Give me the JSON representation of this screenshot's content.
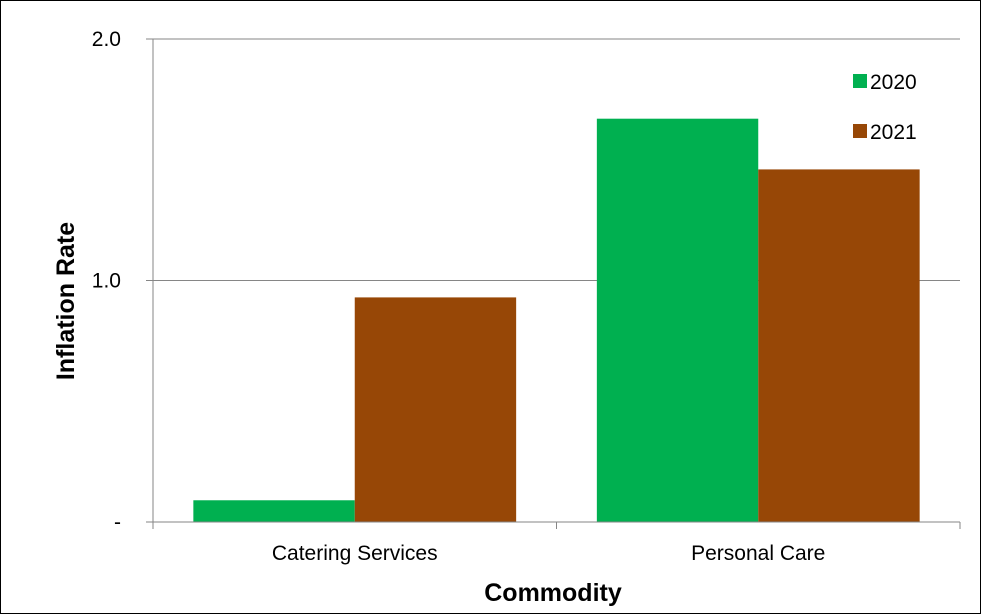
{
  "chart_data": {
    "type": "bar",
    "title": "",
    "xlabel": "Commodity",
    "ylabel": "Inflation Rate",
    "categories": [
      "Catering Services",
      "Personal Care"
    ],
    "series": [
      {
        "name": "2020",
        "values": [
          0.09,
          1.67
        ],
        "color": "#00b050"
      },
      {
        "name": "2021",
        "values": [
          0.93,
          1.46
        ],
        "color": "#974706"
      }
    ],
    "ylim": [
      0,
      2
    ],
    "yticks": [
      {
        "value": 0,
        "label": "-"
      },
      {
        "value": 1,
        "label": "1.0"
      },
      {
        "value": 2,
        "label": "2.0"
      }
    ],
    "grid": true,
    "legend_position": "top-right"
  }
}
